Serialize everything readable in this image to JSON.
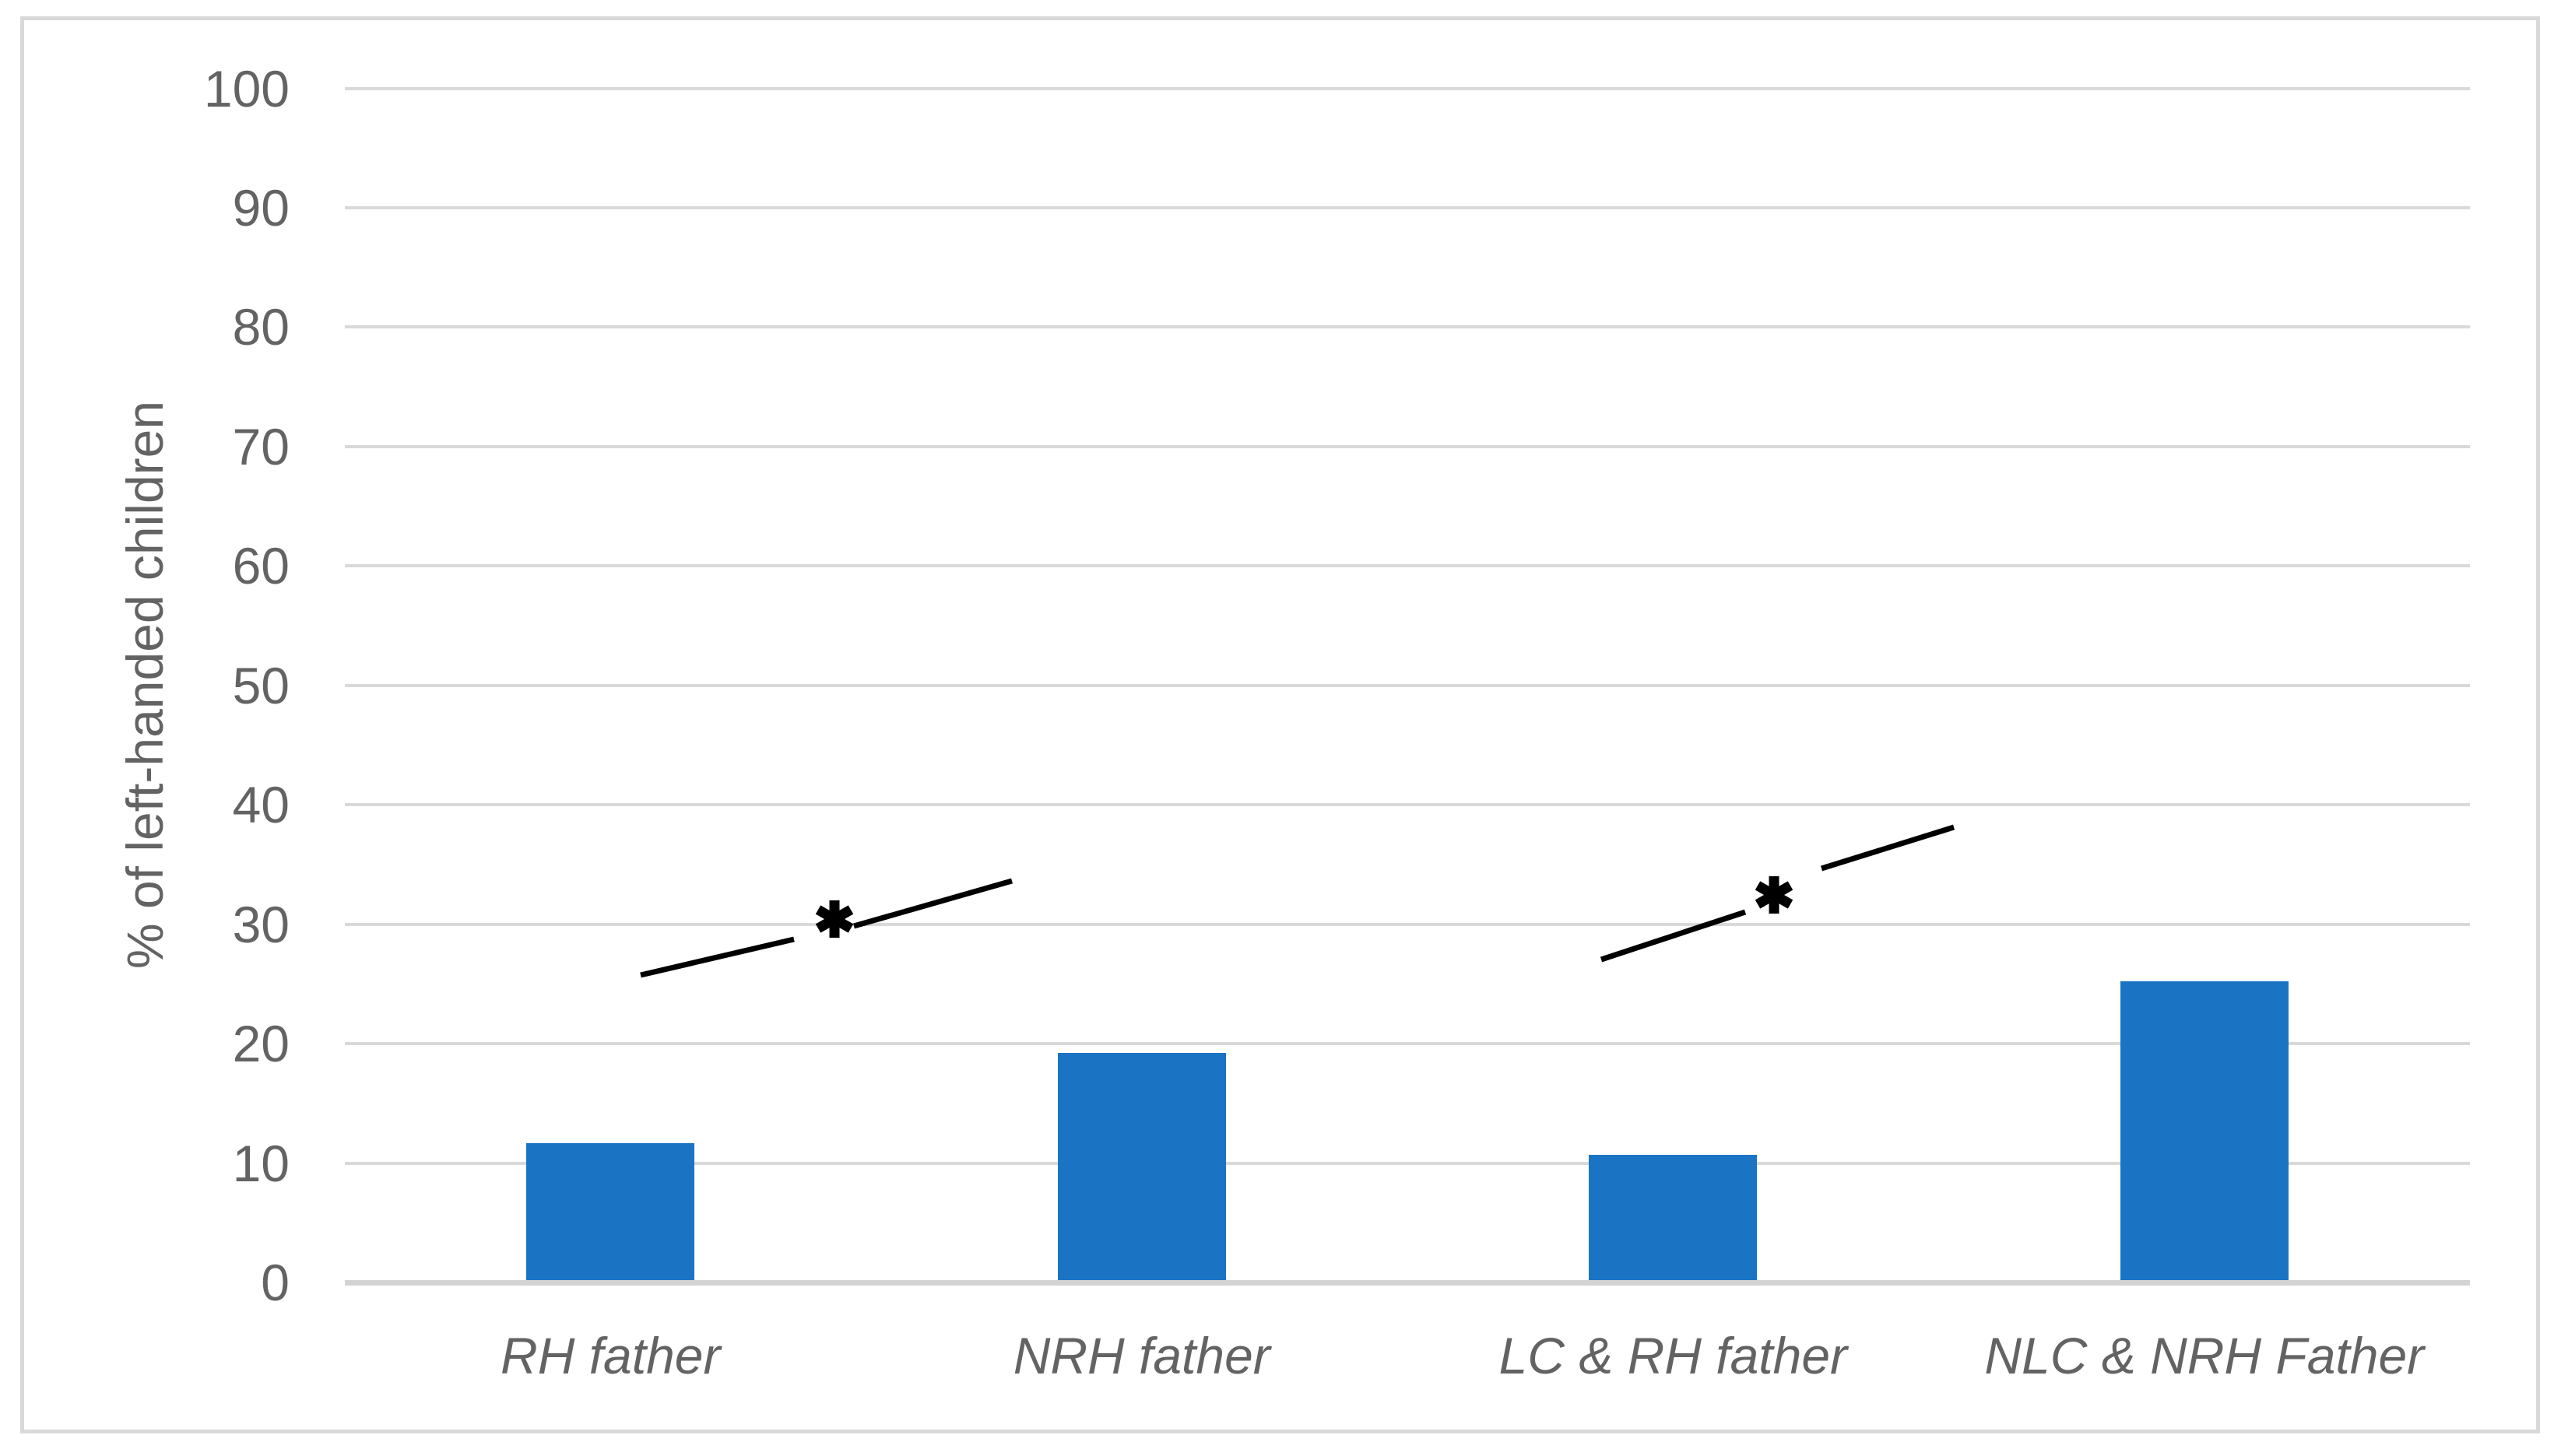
{
  "chart_data": {
    "type": "bar",
    "title": "",
    "categories": [
      "RH father",
      "NRH father",
      "LC & RH father",
      "NLC & NRH Father"
    ],
    "values": [
      11.5,
      19,
      10.5,
      25
    ],
    "xlabel": "",
    "ylabel": "% of left-handed children",
    "ylim": [
      0,
      100
    ],
    "y_ticks": [
      0,
      10,
      20,
      30,
      40,
      50,
      60,
      70,
      80,
      90,
      100
    ],
    "grid": "horizontal-only",
    "legend": "none",
    "bar_color": "#1B73C4",
    "annotations": [
      {
        "label": "*",
        "between": [
          "RH father",
          "NRH father"
        ],
        "style": "slanted-line-with-asterisk"
      },
      {
        "label": "*",
        "between": [
          "LC & RH father",
          "NLC & NRH Father"
        ],
        "style": "slanted-line-with-asterisk"
      }
    ]
  },
  "colors": {
    "bar": "#1B73C4",
    "gridline": "#D9D9D9",
    "axis_line": "#D3D3D3",
    "axis_text": "#636363",
    "annotation": "#000000",
    "frame_border": "#D9D9D9",
    "background": "#FFFFFF"
  }
}
